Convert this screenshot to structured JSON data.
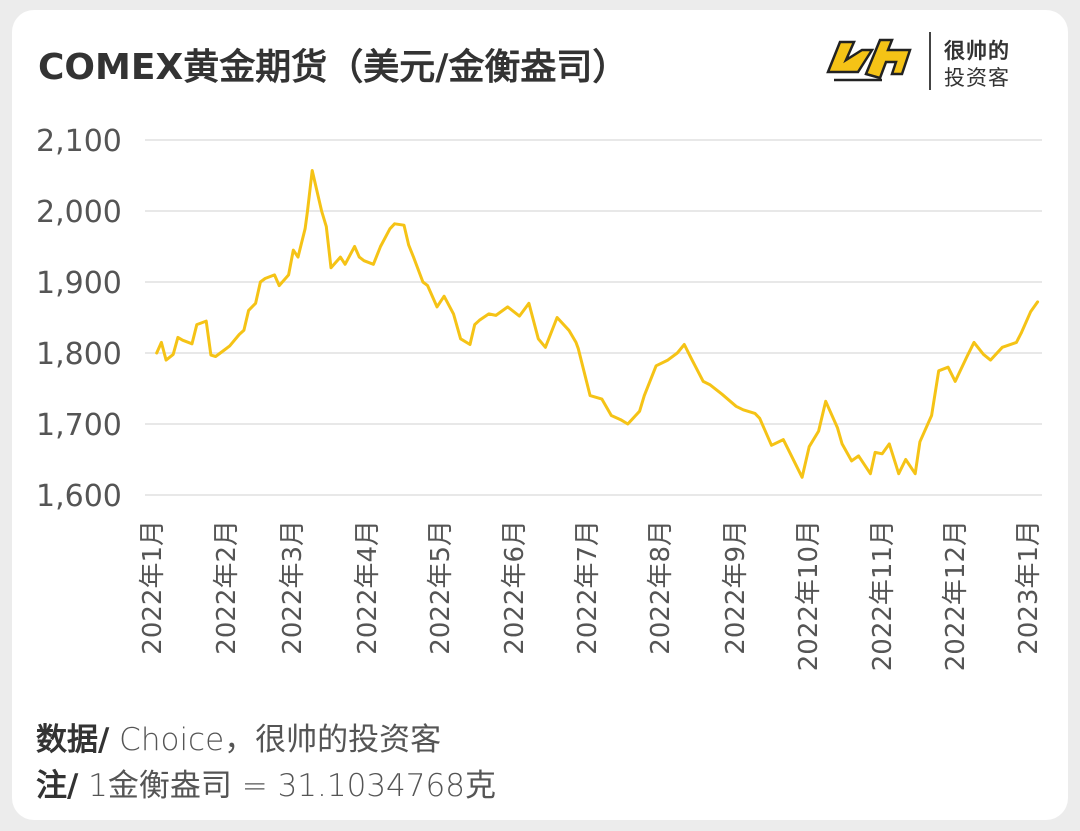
{
  "title": "COMEX黄金期货（美元/金衡盎司）",
  "brand": {
    "line1": "很帅的",
    "line2": "投资客",
    "logo_icon": "yellow-shuai-logo-icon"
  },
  "footer": {
    "source_label": "数据/",
    "source_value": " Choice，很帅的投资客",
    "note_label": "注/",
    "note_value": " 1金衡盎司 = 31.1034768克"
  },
  "colors": {
    "line": "#F5C316",
    "grid": "#e0e0e0",
    "text": "#555555"
  },
  "chart_data": {
    "type": "line",
    "title": "COMEX黄金期货（美元/金衡盎司）",
    "xlabel": "",
    "ylabel": "",
    "ylim": [
      1600,
      2100
    ],
    "yticks": [
      1600,
      1700,
      1800,
      1900,
      2000,
      2100
    ],
    "ytick_labels": [
      "1,600",
      "1,700",
      "1,800",
      "1,900",
      "2,000",
      "2,100"
    ],
    "grid": true,
    "legend": "none",
    "x_tick_labels": [
      "2022年1月",
      "2022年2月",
      "2022年3月",
      "2022年4月",
      "2022年5月",
      "2022年6月",
      "2022年7月",
      "2022年8月",
      "2022年9月",
      "2022年10月",
      "2022年11月",
      "2022年12月",
      "2023年1月"
    ],
    "x": [
      "2022-01-03",
      "2022-01-05",
      "2022-01-07",
      "2022-01-10",
      "2022-01-12",
      "2022-01-14",
      "2022-01-18",
      "2022-01-20",
      "2022-01-24",
      "2022-01-26",
      "2022-01-28",
      "2022-02-01",
      "2022-02-03",
      "2022-02-07",
      "2022-02-09",
      "2022-02-11",
      "2022-02-14",
      "2022-02-16",
      "2022-02-18",
      "2022-02-22",
      "2022-02-24",
      "2022-02-28",
      "2022-03-02",
      "2022-03-04",
      "2022-03-07",
      "2022-03-08",
      "2022-03-10",
      "2022-03-14",
      "2022-03-16",
      "2022-03-18",
      "2022-03-22",
      "2022-03-24",
      "2022-03-28",
      "2022-03-30",
      "2022-04-01",
      "2022-04-05",
      "2022-04-08",
      "2022-04-12",
      "2022-04-14",
      "2022-04-18",
      "2022-04-20",
      "2022-04-22",
      "2022-04-26",
      "2022-04-28",
      "2022-05-02",
      "2022-05-05",
      "2022-05-09",
      "2022-05-12",
      "2022-05-16",
      "2022-05-18",
      "2022-05-20",
      "2022-05-24",
      "2022-05-27",
      "2022-06-01",
      "2022-06-06",
      "2022-06-10",
      "2022-06-14",
      "2022-06-17",
      "2022-06-22",
      "2022-06-27",
      "2022-06-30",
      "2022-07-01",
      "2022-07-06",
      "2022-07-11",
      "2022-07-15",
      "2022-07-19",
      "2022-07-22",
      "2022-07-27",
      "2022-07-29",
      "2022-08-03",
      "2022-08-08",
      "2022-08-12",
      "2022-08-15",
      "2022-08-18",
      "2022-08-23",
      "2022-08-26",
      "2022-08-31",
      "2022-09-06",
      "2022-09-09",
      "2022-09-14",
      "2022-09-16",
      "2022-09-21",
      "2022-09-26",
      "2022-09-28",
      "2022-10-04",
      "2022-10-07",
      "2022-10-11",
      "2022-10-14",
      "2022-10-19",
      "2022-10-21",
      "2022-10-25",
      "2022-10-28",
      "2022-11-02",
      "2022-11-04",
      "2022-11-07",
      "2022-11-10",
      "2022-11-14",
      "2022-11-17",
      "2022-11-21",
      "2022-11-23",
      "2022-11-28",
      "2022-12-01",
      "2022-12-05",
      "2022-12-08",
      "2022-12-13",
      "2022-12-16",
      "2022-12-20",
      "2022-12-23",
      "2022-12-28",
      "2023-01-03",
      "2023-01-05",
      "2023-01-09",
      "2023-01-12"
    ],
    "series": [
      {
        "values": [
          1800,
          1815,
          1790,
          1798,
          1822,
          1818,
          1813,
          1840,
          1845,
          1797,
          1795,
          1805,
          1810,
          1826,
          1832,
          1860,
          1870,
          1900,
          1905,
          1910,
          1895,
          1910,
          1945,
          1935,
          1975,
          2000,
          2057,
          2000,
          1978,
          1920,
          1935,
          1925,
          1950,
          1935,
          1930,
          1925,
          1950,
          1975,
          1982,
          1980,
          1952,
          1935,
          1900,
          1895,
          1865,
          1880,
          1855,
          1820,
          1812,
          1840,
          1846,
          1855,
          1853,
          1865,
          1852,
          1870,
          1820,
          1808,
          1850,
          1832,
          1815,
          1806,
          1740,
          1735,
          1712,
          1706,
          1700,
          1718,
          1740,
          1782,
          1790,
          1800,
          1812,
          1792,
          1760,
          1755,
          1742,
          1725,
          1720,
          1715,
          1708,
          1670,
          1678,
          1665,
          1625,
          1668,
          1690,
          1732,
          1695,
          1672,
          1648,
          1655,
          1630,
          1660,
          1658,
          1672,
          1630,
          1650,
          1630,
          1675,
          1712,
          1775,
          1780,
          1760,
          1795,
          1815,
          1798,
          1790,
          1808,
          1815,
          1828,
          1858,
          1872
        ]
      }
    ]
  }
}
